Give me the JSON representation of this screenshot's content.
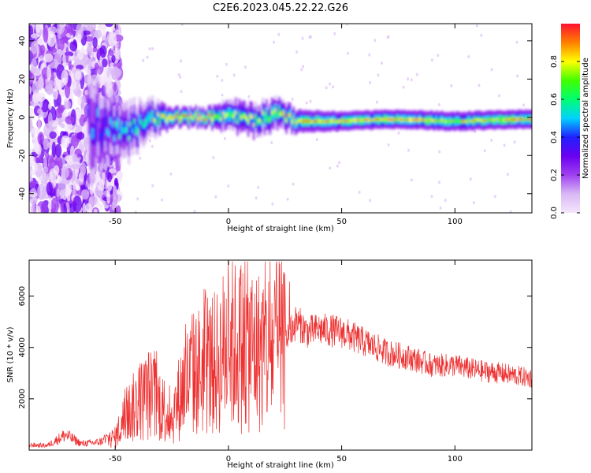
{
  "title": "C2E6.2023.045.22.22.G26",
  "colors": {
    "snr_line": "#ee3030",
    "colormap": [
      "#f4e6fb",
      "#d9b8f5",
      "#a040f0",
      "#6a00f0",
      "#2020ff",
      "#00d2ff",
      "#00ff70",
      "#40ff00",
      "#ffff00",
      "#ff8000",
      "#ff1030"
    ]
  },
  "chart_data": [
    {
      "type": "heatmap",
      "xlabel": "Height of straight line (km)",
      "ylabel": "Frequency (Hz)",
      "xlim": [
        -88,
        134
      ],
      "ylim": [
        -50,
        49
      ],
      "xticks": [
        -50,
        0,
        50,
        100
      ],
      "xtick_labels": [
        "-50",
        "0",
        "50",
        "100"
      ],
      "yticks": [
        -40,
        -20,
        0,
        20,
        40
      ],
      "ytick_labels": [
        "-40",
        "-20",
        "0",
        "20",
        "40"
      ],
      "grid": false,
      "colorbar": {
        "label": "Normalized spectral amplitude",
        "range": [
          0,
          1
        ],
        "ticks": [
          0.0,
          0.2,
          0.4,
          0.6,
          0.8
        ],
        "tick_labels": [
          "0.0",
          "0.2",
          "0.4",
          "0.6",
          "0.8"
        ]
      },
      "ridge": [
        {
          "x": -88,
          "freq": 0,
          "width": 45,
          "amp": 0.28
        },
        {
          "x": -70,
          "freq": 0,
          "width": 40,
          "amp": 0.32
        },
        {
          "x": -55,
          "freq": -5,
          "width": 18,
          "amp": 0.45
        },
        {
          "x": -45,
          "freq": -8,
          "width": 14,
          "amp": 0.55
        },
        {
          "x": -35,
          "freq": 0,
          "width": 10,
          "amp": 0.6
        },
        {
          "x": -25,
          "freq": 0,
          "width": 5,
          "amp": 0.95
        },
        {
          "x": -10,
          "freq": 0,
          "width": 5,
          "amp": 0.9
        },
        {
          "x": 0,
          "freq": 1,
          "width": 8,
          "amp": 0.7
        },
        {
          "x": 10,
          "freq": -2,
          "width": 8,
          "amp": 0.7
        },
        {
          "x": 20,
          "freq": 2,
          "width": 8,
          "amp": 0.75
        },
        {
          "x": 25,
          "freq": 0,
          "width": 7,
          "amp": 0.8
        },
        {
          "x": 30,
          "freq": -2,
          "width": 6,
          "amp": 0.85
        },
        {
          "x": 50,
          "freq": -2,
          "width": 5,
          "amp": 0.85
        },
        {
          "x": 70,
          "freq": -1,
          "width": 5,
          "amp": 0.85
        },
        {
          "x": 100,
          "freq": -2,
          "width": 5,
          "amp": 0.8
        },
        {
          "x": 134,
          "freq": -1,
          "width": 5,
          "amp": 0.85
        }
      ]
    },
    {
      "type": "line",
      "xlabel": "Height of straight line (km)",
      "ylabel": "SNR (10 * v/v)",
      "xlim": [
        -88,
        134
      ],
      "ylim": [
        0,
        7400
      ],
      "xticks": [
        -50,
        0,
        50,
        100
      ],
      "xtick_labels": [
        "-50",
        "0",
        "50",
        "100"
      ],
      "yticks": [
        2000,
        4000,
        6000
      ],
      "ytick_labels": [
        "2000",
        "4000",
        "6000"
      ],
      "grid": false,
      "series": [
        {
          "x": [
            -88,
            -80,
            -72,
            -65,
            -58,
            -50,
            -45,
            -40,
            -35,
            -30,
            -25,
            -20,
            -15,
            -10,
            -5,
            0,
            5,
            10,
            15,
            20,
            25,
            30,
            35,
            40,
            50,
            60,
            70,
            80,
            90,
            100,
            110,
            120,
            134
          ],
          "y": [
            200,
            180,
            600,
            250,
            300,
            500,
            1400,
            1800,
            2200,
            1800,
            1200,
            2500,
            3000,
            3200,
            3400,
            4200,
            4000,
            4000,
            3800,
            4000,
            4300,
            5000,
            4600,
            4700,
            4600,
            4200,
            3800,
            3600,
            3300,
            3300,
            3100,
            3000,
            2800
          ]
        }
      ]
    }
  ]
}
